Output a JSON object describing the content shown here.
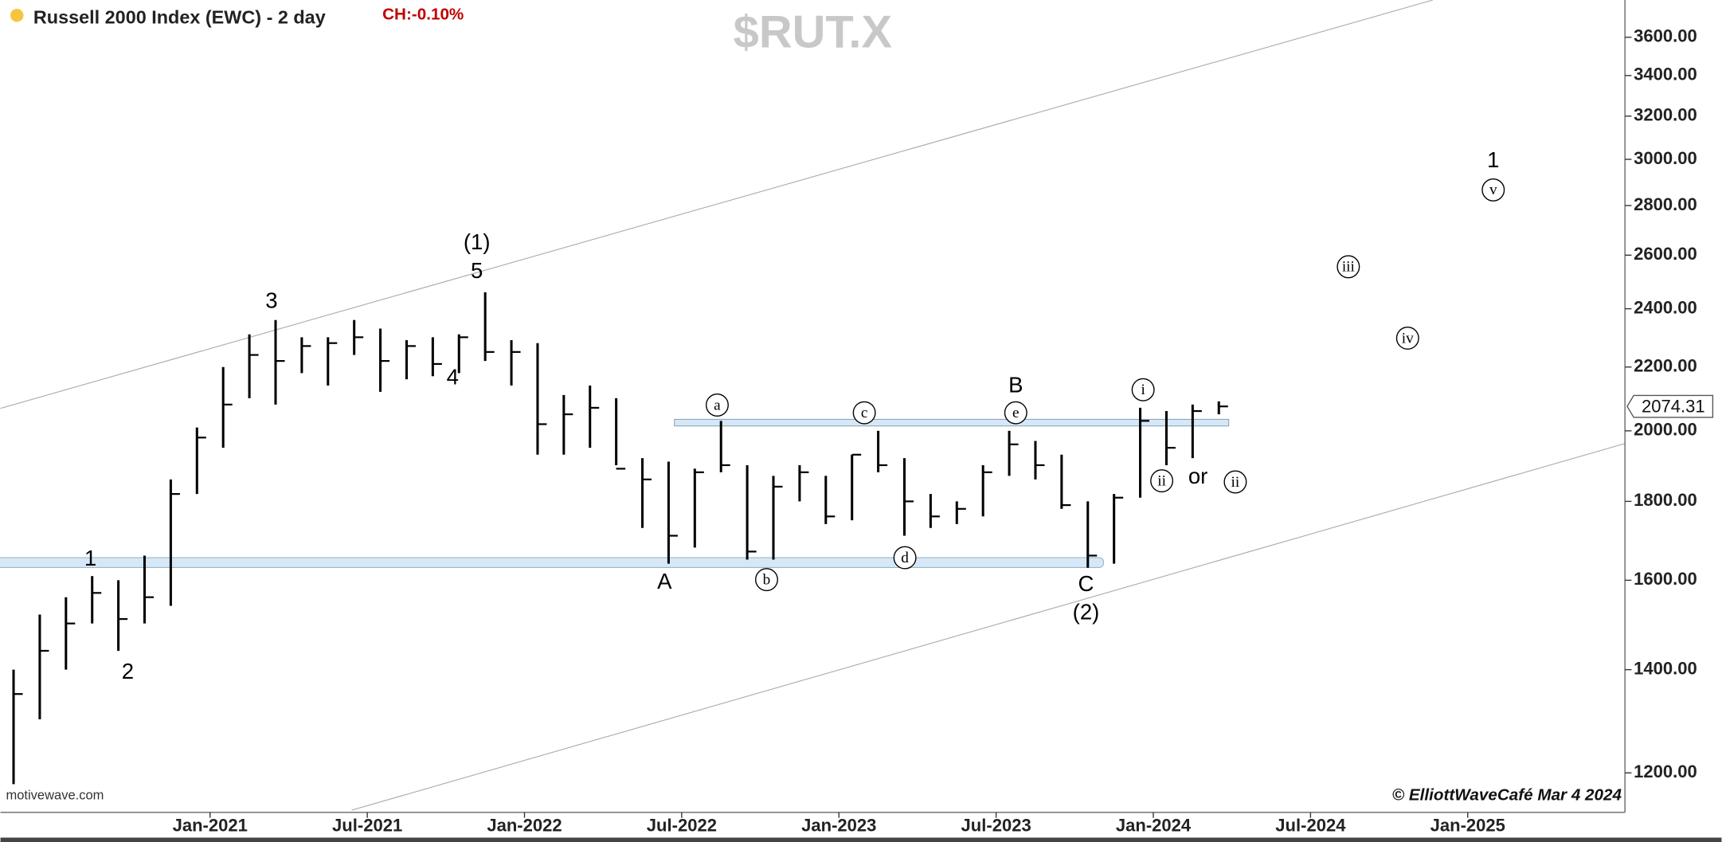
{
  "chart_data": {
    "type": "ohlc",
    "title": "Russell 2000 Index (EWC) - 2 day",
    "change_label": "CH:-0.10%",
    "symbol": "$RUT.X",
    "source": "motivewave.com",
    "copyright": "© ElliottWaveCafé Mar 4 2024",
    "last_value": 2074.31,
    "log_scale": true,
    "grid": false,
    "color": "#000000",
    "x": [
      "2020-05",
      "2020-06",
      "2020-07",
      "2020-08",
      "2020-09",
      "2020-10",
      "2020-11",
      "2020-12",
      "2021-01",
      "2021-02",
      "2021-03",
      "2021-04",
      "2021-05",
      "2021-06",
      "2021-07",
      "2021-08",
      "2021-09",
      "2021-10",
      "2021-11",
      "2021-12",
      "2022-01",
      "2022-02",
      "2022-03",
      "2022-04",
      "2022-05",
      "2022-06",
      "2022-07",
      "2022-08",
      "2022-09",
      "2022-10",
      "2022-11",
      "2022-12",
      "2023-01",
      "2023-02",
      "2023-03",
      "2023-04",
      "2023-05",
      "2023-06",
      "2023-07",
      "2023-08",
      "2023-09",
      "2023-10",
      "2023-11",
      "2023-12",
      "2024-01",
      "2024-02",
      "2024-03"
    ],
    "high": [
      1400,
      1520,
      1560,
      1610,
      1600,
      1660,
      1860,
      2010,
      2200,
      2310,
      2360,
      2300,
      2300,
      2360,
      2330,
      2290,
      2300,
      2310,
      2460,
      2290,
      2280,
      2110,
      2140,
      2100,
      1920,
      1910,
      1890,
      2030,
      1900,
      1870,
      1900,
      1870,
      1930,
      2000,
      1920,
      1820,
      1800,
      1900,
      2000,
      1970,
      1930,
      1800,
      1820,
      2070,
      2060,
      2080,
      2090
    ],
    "low": [
      1180,
      1300,
      1400,
      1500,
      1440,
      1500,
      1540,
      1820,
      1950,
      2100,
      2080,
      2180,
      2140,
      2240,
      2120,
      2160,
      2170,
      2180,
      2220,
      2140,
      1930,
      1930,
      1950,
      1900,
      1730,
      1640,
      1680,
      1880,
      1650,
      1650,
      1800,
      1740,
      1750,
      1880,
      1710,
      1730,
      1740,
      1760,
      1870,
      1860,
      1780,
      1630,
      1640,
      1810,
      1900,
      1920,
      2050
    ],
    "close": [
      1350,
      1440,
      1500,
      1570,
      1510,
      1560,
      1820,
      1980,
      2080,
      2240,
      2220,
      2270,
      2280,
      2300,
      2220,
      2270,
      2210,
      2300,
      2250,
      2250,
      2020,
      2050,
      2070,
      1890,
      1860,
      1710,
      1880,
      1900,
      1670,
      1840,
      1880,
      1760,
      1930,
      1900,
      1800,
      1760,
      1780,
      1880,
      1960,
      1900,
      1790,
      1660,
      1810,
      2030,
      1950,
      2060,
      2074.31
    ],
    "xlim": [
      "2020-05",
      "2025-07"
    ],
    "xticks": [
      {
        "value": "2021-01",
        "label": "Jan-2021"
      },
      {
        "value": "2021-07",
        "label": "Jul-2021"
      },
      {
        "value": "2022-01",
        "label": "Jan-2022"
      },
      {
        "value": "2022-07",
        "label": "Jul-2022"
      },
      {
        "value": "2023-01",
        "label": "Jan-2023"
      },
      {
        "value": "2023-07",
        "label": "Jul-2023"
      },
      {
        "value": "2024-01",
        "label": "Jan-2024"
      },
      {
        "value": "2024-07",
        "label": "Jul-2024"
      },
      {
        "value": "2025-01",
        "label": "Jan-2025"
      }
    ],
    "ylim": [
      1135,
      3806
    ],
    "yticks": [
      {
        "value": 1200,
        "label": "1200.00"
      },
      {
        "value": 1400,
        "label": "1400.00"
      },
      {
        "value": 1600,
        "label": "1600.00"
      },
      {
        "value": 1800,
        "label": "1800.00"
      },
      {
        "value": 2000,
        "label": "2000.00"
      },
      {
        "value": 2200,
        "label": "2200.00"
      },
      {
        "value": 2400,
        "label": "2400.00"
      },
      {
        "value": 2600,
        "label": "2600.00"
      },
      {
        "value": 2800,
        "label": "2800.00"
      },
      {
        "value": 3000,
        "label": "3000.00"
      },
      {
        "value": 3200,
        "label": "3200.00"
      },
      {
        "value": 3400,
        "label": "3400.00"
      },
      {
        "value": 3600,
        "label": "3600.00"
      }
    ],
    "annotations": [
      {
        "text": "1",
        "circled": false
      },
      {
        "text": "2",
        "circled": false
      },
      {
        "text": "3",
        "circled": false
      },
      {
        "text": "4",
        "circled": false
      },
      {
        "text": "5",
        "circled": false
      },
      {
        "text": "(1)",
        "circled": false
      },
      {
        "text": "A",
        "circled": false
      },
      {
        "text": "a",
        "circled": true
      },
      {
        "text": "b",
        "circled": true
      },
      {
        "text": "c",
        "circled": true
      },
      {
        "text": "d",
        "circled": true
      },
      {
        "text": "B",
        "circled": false
      },
      {
        "text": "e",
        "circled": true
      },
      {
        "text": "C",
        "circled": false
      },
      {
        "text": "(2)",
        "circled": false
      },
      {
        "text": "i",
        "circled": true
      },
      {
        "text": "ii",
        "circled": true
      },
      {
        "text": "or",
        "circled": false
      },
      {
        "text": "ii",
        "circled": true
      },
      {
        "text": "iii",
        "circled": true
      },
      {
        "text": "iv",
        "circled": true
      },
      {
        "text": "v",
        "circled": true
      },
      {
        "text": "1",
        "circled": false
      }
    ]
  }
}
